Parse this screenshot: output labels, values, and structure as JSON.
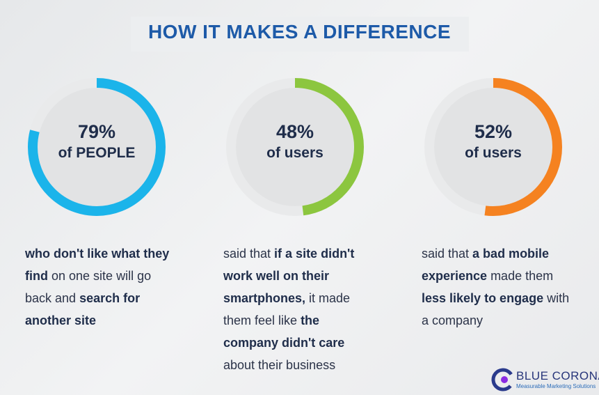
{
  "title": "HOW IT MAKES A DIFFERENCE",
  "chart_data": [
    {
      "type": "pie",
      "value": 79,
      "percent_label": "79%",
      "subtitle": "of PEOPLE",
      "color": "#1bb4ea",
      "description_parts": [
        {
          "text": "who don't like what they find",
          "bold": true
        },
        {
          "text": " on one site will go back and ",
          "bold": false
        },
        {
          "text": "search for another site",
          "bold": true
        }
      ]
    },
    {
      "type": "pie",
      "value": 48,
      "percent_label": "48%",
      "subtitle": "of users",
      "color": "#8cc63f",
      "description_parts": [
        {
          "text": "said that ",
          "bold": false
        },
        {
          "text": "if a site didn't work well on their smartphones,",
          "bold": true
        },
        {
          "text": " it made them feel like ",
          "bold": false
        },
        {
          "text": "the company didn't care",
          "bold": true
        },
        {
          "text": " about their business",
          "bold": false
        }
      ]
    },
    {
      "type": "pie",
      "value": 52,
      "percent_label": "52%",
      "subtitle": "of users",
      "color": "#f58220",
      "description_parts": [
        {
          "text": "said that ",
          "bold": false
        },
        {
          "text": "a bad mobile experience",
          "bold": true
        },
        {
          "text": " made them ",
          "bold": false
        },
        {
          "text": "less likely to engage",
          "bold": true
        },
        {
          "text": " with a company",
          "bold": false
        }
      ]
    }
  ],
  "logo": {
    "name": "BLUE CORONA",
    "tagline": "Measurable Marketing Solutions",
    "icon": "blue-corona-logo-icon",
    "colors": [
      "#2a3a8c",
      "#8a2be2"
    ]
  },
  "colors": {
    "title": "#1d5aa8",
    "text": "#2b3348",
    "track": "#e9eaeb",
    "inner": "#e2e3e4"
  }
}
